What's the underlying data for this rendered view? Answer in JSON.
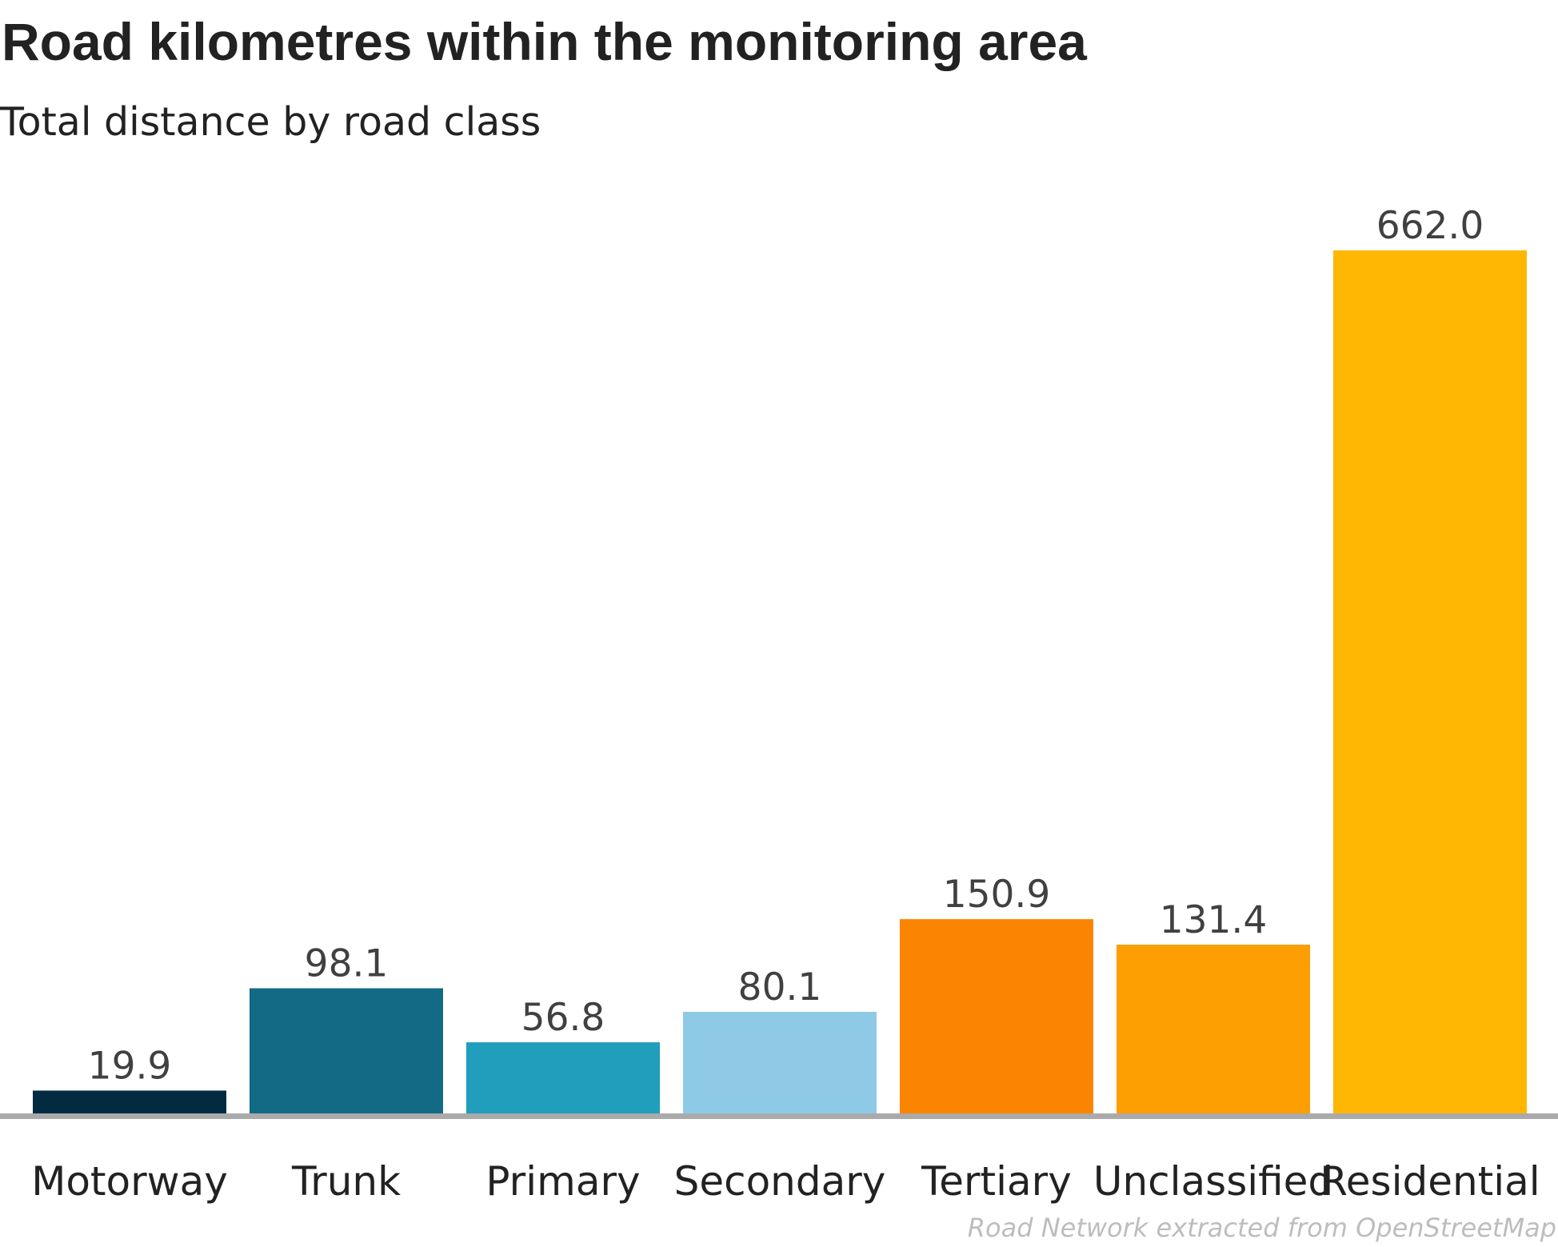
{
  "title": "Road kilometres within the monitoring area",
  "subtitle": "Total distance by road class",
  "caption": "Road Network extracted from OpenStreetMap",
  "chart_data": {
    "type": "bar",
    "categories": [
      "Motorway",
      "Trunk",
      "Primary",
      "Secondary",
      "Tertiary",
      "Unclassified",
      "Residential"
    ],
    "values": [
      19.9,
      98.1,
      56.8,
      80.1,
      150.9,
      131.4,
      662.0
    ],
    "value_labels": [
      "19.9",
      "98.1",
      "56.8",
      "80.1",
      "150.9",
      "131.4",
      "662.0"
    ],
    "colors": [
      "#022b42",
      "#136a85",
      "#219ebc",
      "#8ecae6",
      "#fb8500",
      "#fd9e02",
      "#ffb703"
    ],
    "ylim": [
      0,
      700
    ],
    "grid": false,
    "legend": "none",
    "baseline_color": "#aaaaaa"
  }
}
